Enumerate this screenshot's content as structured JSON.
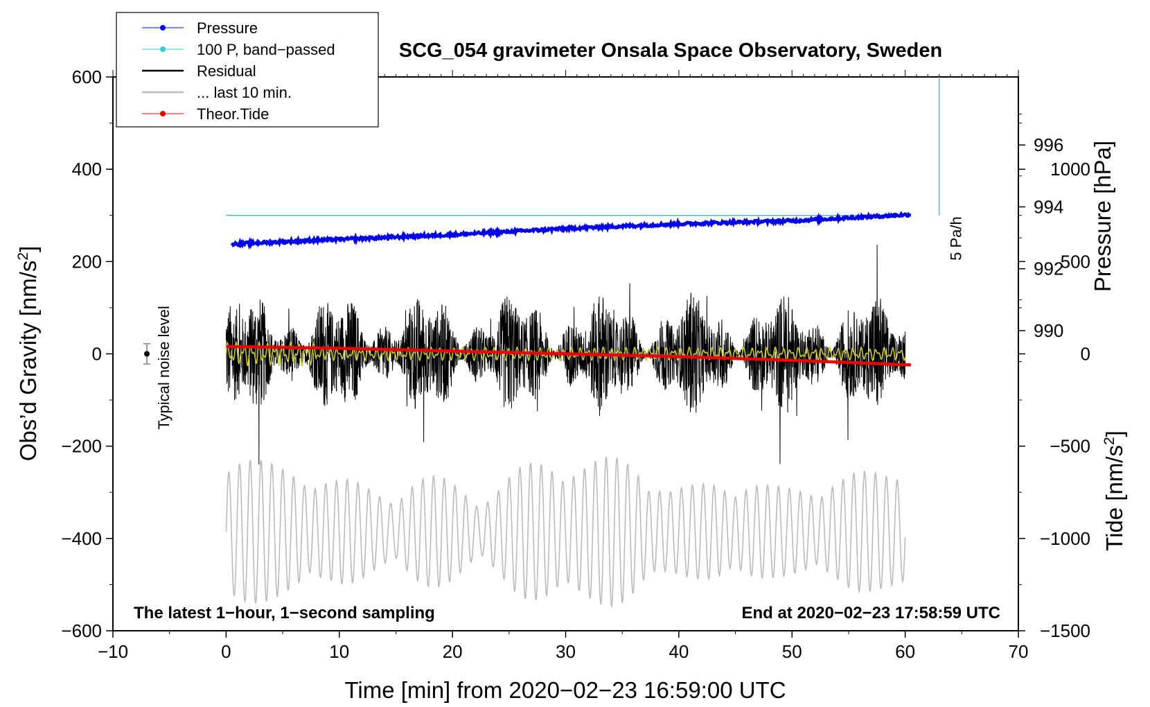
{
  "chart_data": {
    "type": "line",
    "title": "SCG_054 gravimeter Onsala Space Observatory, Sweden",
    "xlabel": "Time [min] from 2020−02−23 16:59:00 UTC",
    "ylabel": "Obs’d Gravity [nm/s²]",
    "ylabel_main": "Obs’d Gravity [nm/s",
    "ylabel_exp": "2",
    "ylabel_close": "]",
    "y2label": "Pressure [hPa]",
    "y3label": "Tide [nm/s²]",
    "y3label_main": "Tide [nm/s",
    "y3label_exp": "2",
    "y3label_close": "]",
    "xlim": [
      -10,
      70
    ],
    "ylim": [
      -600,
      600
    ],
    "pressure_lim": [
      980.3,
      998.2
    ],
    "tide_lim": [
      -1500,
      1500
    ],
    "grid": false,
    "legend_position": "top-left",
    "x_ticks": [
      "−10",
      "0",
      "10",
      "20",
      "30",
      "40",
      "50",
      "60",
      "70"
    ],
    "x_tick_values": [
      -10,
      0,
      10,
      20,
      30,
      40,
      50,
      60,
      70
    ],
    "y_ticks": [
      "600",
      "400",
      "200",
      "0",
      "−200",
      "−400",
      "−600"
    ],
    "y_tick_values": [
      600,
      400,
      200,
      0,
      -200,
      -400,
      -600
    ],
    "pressure_ticks": [
      "996",
      "994",
      "992",
      "990"
    ],
    "pressure_tick_values": [
      996,
      994,
      992,
      990
    ],
    "tide_ticks": [
      "1000",
      "500",
      "0",
      "−500",
      "−1000",
      "−1500"
    ],
    "tide_tick_values": [
      1000,
      500,
      0,
      -500,
      -1000,
      -1500
    ],
    "legend": [
      {
        "label": "Pressure",
        "color": "#0000ee",
        "marker": true
      },
      {
        "label": "100 P, band−passed",
        "color": "#33cccc",
        "marker": true
      },
      {
        "label": "Residual",
        "color": "#000000",
        "marker": false
      },
      {
        "label": "... last 10 min.",
        "color": "#bbbbbb",
        "marker": false
      },
      {
        "label": "Theor.Tide",
        "color": "#ee0000",
        "marker": true
      }
    ],
    "series": [
      {
        "name": "Pressure",
        "axis": "pressure",
        "color": "#0000ee",
        "x": [
          0.5,
          10,
          20,
          30,
          40,
          50,
          60.5
        ],
        "values": [
          992.8,
          992.95,
          993.1,
          993.3,
          993.45,
          993.55,
          993.75
        ]
      },
      {
        "name": "100 P, band−passed",
        "axis": "gravity",
        "color": "#33cccc",
        "x": [
          0,
          60
        ],
        "values": [
          300,
          300
        ]
      },
      {
        "name": "Residual",
        "axis": "gravity",
        "color": "#000000",
        "x_range": [
          0,
          60
        ],
        "amplitude": 110,
        "peak_max": 255,
        "peak_min": -240
      },
      {
        "name": "... last 10 min.",
        "axis": "gravity",
        "color": "#bbbbbb",
        "x_range": [
          0,
          60
        ],
        "center": -385,
        "amplitude": 110
      },
      {
        "name": "Filtered residual",
        "axis": "gravity",
        "color": "#cccc22",
        "x_range": [
          0,
          60
        ],
        "amplitude": 12
      },
      {
        "name": "Theor.Tide",
        "axis": "tide",
        "color": "#ee0000",
        "x": [
          0,
          10,
          20,
          30,
          40,
          50,
          60.5
        ],
        "values": [
          40,
          30,
          15,
          0,
          -15,
          -35,
          -60
        ]
      }
    ],
    "annotations": {
      "pressure_rate_label": "5 Pa/h",
      "pressure_rate_x": 63,
      "pressure_rate_range": [
        300,
        600
      ],
      "noise_label": "Typical noise level",
      "noise_x": -7,
      "noise_value": 0,
      "noise_error": 22
    },
    "footer_left": "The latest 1−hour, 1−second sampling",
    "footer_right": "End at 2020−02−23 17:58:59 UTC"
  }
}
